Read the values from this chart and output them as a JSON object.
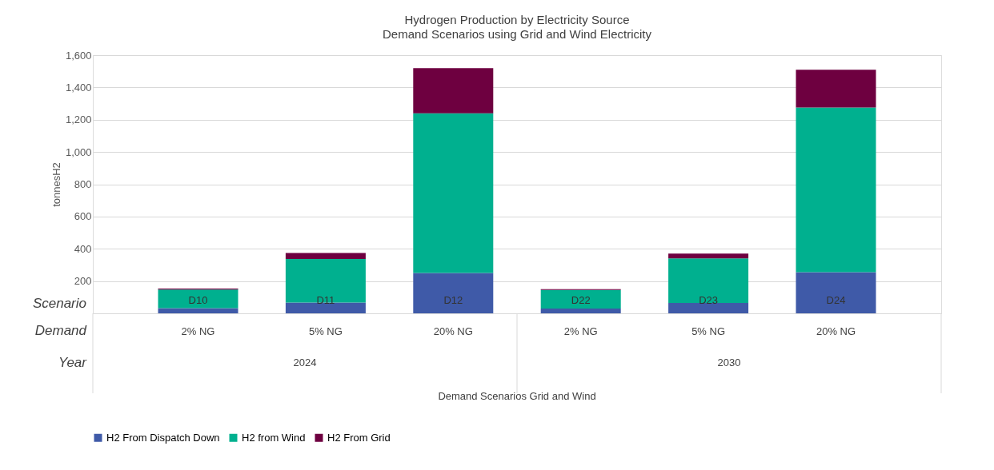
{
  "chart_data": {
    "type": "bar",
    "title": "Hydrogen Production by Electricity Source",
    "subtitle": "Demand Scenarios using Grid and Wind Electricity",
    "ylabel": "tonnesH2",
    "categories": [
      "2% NG",
      "5% NG",
      "20% NG",
      "2% NG",
      "5% NG",
      "20% NG"
    ],
    "stacked": true,
    "series": [
      {
        "name": "H2 From Dispatch Down",
        "color": "#3f5aa8",
        "values": [
          32,
          67,
          250,
          30,
          65,
          255
        ]
      },
      {
        "name": "H2 from Wind",
        "color": "#00b08f",
        "values": [
          115,
          270,
          990,
          115,
          275,
          1020
        ]
      },
      {
        "name": "H2 From Grid",
        "color": "#6e0040",
        "values": [
          6,
          37,
          280,
          5,
          30,
          235
        ]
      }
    ],
    "ylim": [
      0,
      1600
    ],
    "yticks": [
      200,
      400,
      600,
      800,
      {
        "value": 1000,
        "label": "1,000"
      },
      {
        "value": 1200,
        "label": "1,200"
      },
      {
        "value": 1400,
        "label": "1,400"
      },
      {
        "value": 1600,
        "label": "1,600"
      }
    ],
    "grid": "y",
    "legend": "bottom",
    "annotations": [
      "D10",
      "D11",
      "D12",
      "D22",
      "D23",
      "D24",
      "Scenario",
      "Demand",
      "Year",
      "2024",
      "2030",
      "Demand Scenarios Grid and Wind"
    ]
  }
}
